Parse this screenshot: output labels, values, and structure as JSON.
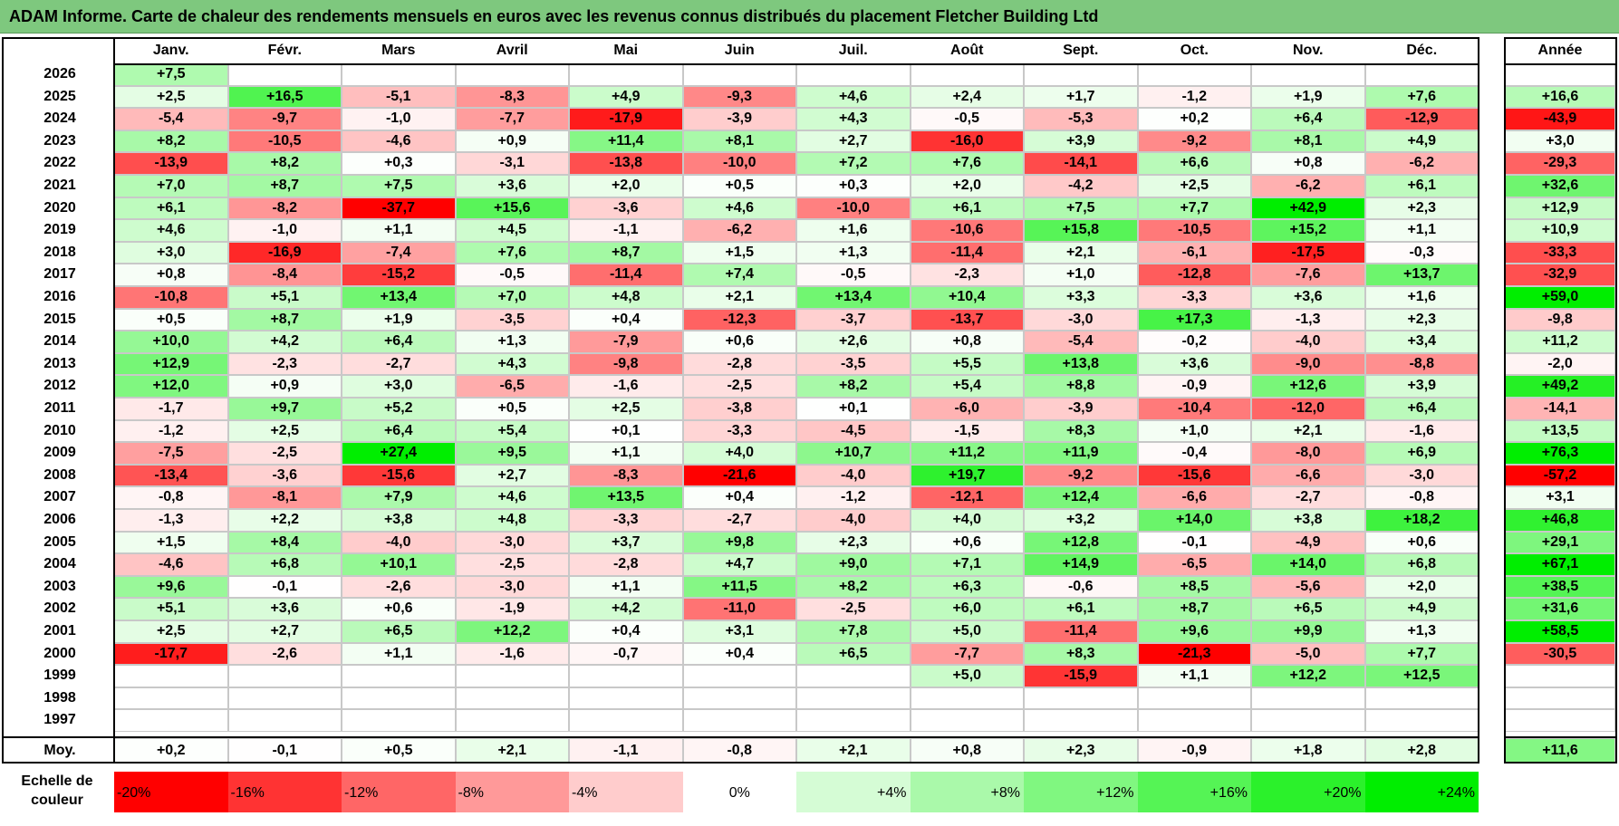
{
  "title": "ADAM Informe. Carte de chaleur des rendements mensuels en euros avec les revenus connus distribués du placement Fletcher Building Ltd",
  "chart_data": {
    "type": "heatmap",
    "title": "ADAM Informe. Carte de chaleur des rendements mensuels en euros avec les revenus connus distribués du placement Fletcher Building Ltd",
    "months": [
      "Janv.",
      "Févr.",
      "Mars",
      "Avril",
      "Mai",
      "Juin",
      "Juil.",
      "Août",
      "Sept.",
      "Oct.",
      "Nov.",
      "Déc."
    ],
    "year_header": "Année",
    "rows": [
      {
        "year": "2026",
        "values": [
          "+7,5",
          "",
          "",
          "",
          "",
          "",
          "",
          "",
          "",
          "",
          "",
          ""
        ],
        "annual": ""
      },
      {
        "year": "2025",
        "values": [
          "+2,5",
          "+16,5",
          "-5,1",
          "-8,3",
          "+4,9",
          "-9,3",
          "+4,6",
          "+2,4",
          "+1,7",
          "-1,2",
          "+1,9",
          "+7,6"
        ],
        "annual": "+16,6"
      },
      {
        "year": "2024",
        "values": [
          "-5,4",
          "-9,7",
          "-1,0",
          "-7,7",
          "-17,9",
          "-3,9",
          "+4,3",
          "-0,5",
          "-5,3",
          "+0,2",
          "+6,4",
          "-12,9"
        ],
        "annual": "-43,9"
      },
      {
        "year": "2023",
        "values": [
          "+8,2",
          "-10,5",
          "-4,6",
          "+0,9",
          "+11,4",
          "+8,1",
          "+2,7",
          "-16,0",
          "+3,9",
          "-9,2",
          "+8,1",
          "+4,9"
        ],
        "annual": "+3,0"
      },
      {
        "year": "2022",
        "values": [
          "-13,9",
          "+8,2",
          "+0,3",
          "-3,1",
          "-13,8",
          "-10,0",
          "+7,2",
          "+7,6",
          "-14,1",
          "+6,6",
          "+0,8",
          "-6,2"
        ],
        "annual": "-29,3"
      },
      {
        "year": "2021",
        "values": [
          "+7,0",
          "+8,7",
          "+7,5",
          "+3,6",
          "+2,0",
          "+0,5",
          "+0,3",
          "+2,0",
          "-4,2",
          "+2,5",
          "-6,2",
          "+6,1"
        ],
        "annual": "+32,6"
      },
      {
        "year": "2020",
        "values": [
          "+6,1",
          "-8,2",
          "-37,7",
          "+15,6",
          "-3,6",
          "+4,6",
          "-10,0",
          "+6,1",
          "+7,5",
          "+7,7",
          "+42,9",
          "+2,3"
        ],
        "annual": "+12,9"
      },
      {
        "year": "2019",
        "values": [
          "+4,6",
          "-1,0",
          "+1,1",
          "+4,5",
          "-1,1",
          "-6,2",
          "+1,6",
          "-10,6",
          "+15,8",
          "-10,5",
          "+15,2",
          "+1,1"
        ],
        "annual": "+10,9"
      },
      {
        "year": "2018",
        "values": [
          "+3,0",
          "-16,9",
          "-7,4",
          "+7,6",
          "+8,7",
          "+1,5",
          "+1,3",
          "-11,4",
          "+2,1",
          "-6,1",
          "-17,5",
          "-0,3"
        ],
        "annual": "-33,3"
      },
      {
        "year": "2017",
        "values": [
          "+0,8",
          "-8,4",
          "-15,2",
          "-0,5",
          "-11,4",
          "+7,4",
          "-0,5",
          "-2,3",
          "+1,0",
          "-12,8",
          "-7,6",
          "+13,7"
        ],
        "annual": "-32,9"
      },
      {
        "year": "2016",
        "values": [
          "-10,8",
          "+5,1",
          "+13,4",
          "+7,0",
          "+4,8",
          "+2,1",
          "+13,4",
          "+10,4",
          "+3,3",
          "-3,3",
          "+3,6",
          "+1,6"
        ],
        "annual": "+59,0"
      },
      {
        "year": "2015",
        "values": [
          "+0,5",
          "+8,7",
          "+1,9",
          "-3,5",
          "+0,4",
          "-12,3",
          "-3,7",
          "-13,7",
          "-3,0",
          "+17,3",
          "-1,3",
          "+2,3"
        ],
        "annual": "-9,8"
      },
      {
        "year": "2014",
        "values": [
          "+10,0",
          "+4,2",
          "+6,4",
          "+1,3",
          "-7,9",
          "+0,6",
          "+2,6",
          "+0,8",
          "-5,4",
          "-0,2",
          "-4,0",
          "+3,4"
        ],
        "annual": "+11,2"
      },
      {
        "year": "2013",
        "values": [
          "+12,9",
          "-2,3",
          "-2,7",
          "+4,3",
          "-9,8",
          "-2,8",
          "-3,5",
          "+5,5",
          "+13,8",
          "+3,6",
          "-9,0",
          "-8,8"
        ],
        "annual": "-2,0"
      },
      {
        "year": "2012",
        "values": [
          "+12,0",
          "+0,9",
          "+3,0",
          "-6,5",
          "-1,6",
          "-2,5",
          "+8,2",
          "+5,4",
          "+8,8",
          "-0,9",
          "+12,6",
          "+3,9"
        ],
        "annual": "+49,2"
      },
      {
        "year": "2011",
        "values": [
          "-1,7",
          "+9,7",
          "+5,2",
          "+0,5",
          "+2,5",
          "-3,8",
          "+0,1",
          "-6,0",
          "-3,9",
          "-10,4",
          "-12,0",
          "+6,4"
        ],
        "annual": "-14,1"
      },
      {
        "year": "2010",
        "values": [
          "-1,2",
          "+2,5",
          "+6,4",
          "+5,4",
          "+0,1",
          "-3,3",
          "-4,5",
          "-1,5",
          "+8,3",
          "+1,0",
          "+2,1",
          "-1,6"
        ],
        "annual": "+13,5"
      },
      {
        "year": "2009",
        "values": [
          "-7,5",
          "-2,5",
          "+27,4",
          "+9,5",
          "+1,1",
          "+4,0",
          "+10,7",
          "+11,2",
          "+11,9",
          "-0,4",
          "-8,0",
          "+6,9"
        ],
        "annual": "+76,3"
      },
      {
        "year": "2008",
        "values": [
          "-13,4",
          "-3,6",
          "-15,6",
          "+2,7",
          "-8,3",
          "-21,6",
          "-4,0",
          "+19,7",
          "-9,2",
          "-15,6",
          "-6,6",
          "-3,0"
        ],
        "annual": "-57,2"
      },
      {
        "year": "2007",
        "values": [
          "-0,8",
          "-8,1",
          "+7,9",
          "+4,6",
          "+13,5",
          "+0,4",
          "-1,2",
          "-12,1",
          "+12,4",
          "-6,6",
          "-2,7",
          "-0,8"
        ],
        "annual": "+3,1"
      },
      {
        "year": "2006",
        "values": [
          "-1,3",
          "+2,2",
          "+3,8",
          "+4,8",
          "-3,3",
          "-2,7",
          "-4,0",
          "+4,0",
          "+3,2",
          "+14,0",
          "+3,8",
          "+18,2"
        ],
        "annual": "+46,8"
      },
      {
        "year": "2005",
        "values": [
          "+1,5",
          "+8,4",
          "-4,0",
          "-3,0",
          "+3,7",
          "+9,8",
          "+2,3",
          "+0,6",
          "+12,8",
          "-0,1",
          "-4,9",
          "+0,6"
        ],
        "annual": "+29,1"
      },
      {
        "year": "2004",
        "values": [
          "-4,6",
          "+6,8",
          "+10,1",
          "-2,5",
          "-2,8",
          "+4,7",
          "+9,0",
          "+7,1",
          "+14,9",
          "-6,5",
          "+14,0",
          "+6,8"
        ],
        "annual": "+67,1"
      },
      {
        "year": "2003",
        "values": [
          "+9,6",
          "-0,1",
          "-2,6",
          "-3,0",
          "+1,1",
          "+11,5",
          "+8,2",
          "+6,3",
          "-0,6",
          "+8,5",
          "-5,6",
          "+2,0"
        ],
        "annual": "+38,5"
      },
      {
        "year": "2002",
        "values": [
          "+5,1",
          "+3,6",
          "+0,6",
          "-1,9",
          "+4,2",
          "-11,0",
          "-2,5",
          "+6,0",
          "+6,1",
          "+8,7",
          "+6,5",
          "+4,9"
        ],
        "annual": "+31,6"
      },
      {
        "year": "2001",
        "values": [
          "+2,5",
          "+2,7",
          "+6,5",
          "+12,2",
          "+0,4",
          "+3,1",
          "+7,8",
          "+5,0",
          "-11,4",
          "+9,6",
          "+9,9",
          "+1,3"
        ],
        "annual": "+58,5"
      },
      {
        "year": "2000",
        "values": [
          "-17,7",
          "-2,6",
          "+1,1",
          "-1,6",
          "-0,7",
          "+0,4",
          "+6,5",
          "-7,7",
          "+8,3",
          "-21,3",
          "-5,0",
          "+7,7"
        ],
        "annual": "-30,5"
      },
      {
        "year": "1999",
        "values": [
          "",
          "",
          "",
          "",
          "",
          "",
          "",
          "+5,0",
          "-15,9",
          "+1,1",
          "+12,2",
          "+12,5"
        ],
        "annual": ""
      },
      {
        "year": "1998",
        "values": [
          "",
          "",
          "",
          "",
          "",
          "",
          "",
          "",
          "",
          "",
          "",
          ""
        ],
        "annual": ""
      },
      {
        "year": "1997",
        "values": [
          "",
          "",
          "",
          "",
          "",
          "",
          "",
          "",
          "",
          "",
          "",
          ""
        ],
        "annual": ""
      }
    ],
    "average": {
      "label": "Moy.",
      "values": [
        "+0,2",
        "-0,1",
        "+0,5",
        "+2,1",
        "-1,1",
        "-0,8",
        "+2,1",
        "+0,8",
        "+2,3",
        "-0,9",
        "+1,8",
        "+2,8"
      ],
      "annual": "+11,6"
    },
    "scale": {
      "label_line1": "Echelle de",
      "label_line2": "couleur",
      "stops": [
        {
          "label": "-20%",
          "value": -20
        },
        {
          "label": "-16%",
          "value": -16
        },
        {
          "label": "-12%",
          "value": -12
        },
        {
          "label": "-8%",
          "value": -8
        },
        {
          "label": "-4%",
          "value": -4
        },
        {
          "label": "0%",
          "value": 0
        },
        {
          "label": "+4%",
          "value": 4
        },
        {
          "label": "+8%",
          "value": 8
        },
        {
          "label": "+12%",
          "value": 12
        },
        {
          "label": "+16%",
          "value": 16
        },
        {
          "label": "+20%",
          "value": 20
        },
        {
          "label": "+24%",
          "value": 24
        }
      ]
    },
    "colors": {
      "title_bg": "#7ec87e",
      "neg_max": "#ff0000",
      "pos_max": "#00ee00",
      "neutral": "#ffffff"
    }
  }
}
